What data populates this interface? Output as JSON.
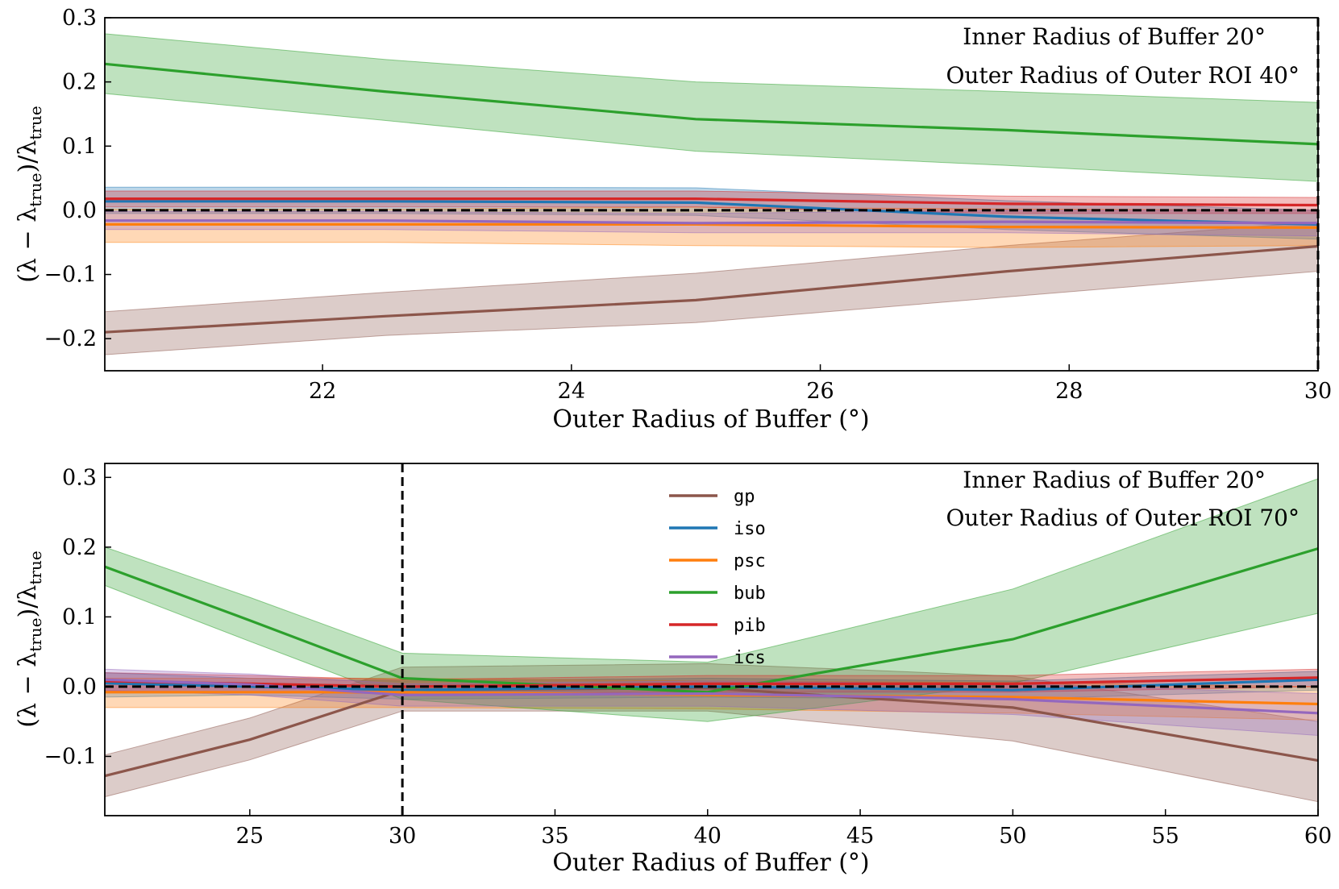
{
  "chart_data": [
    {
      "type": "line",
      "title": "",
      "xlabel": "Outer Radius of Buffer (°)",
      "ylabel": "(λ − λtrue)/λtrue",
      "ylabel_parts": {
        "a": "(λ − λ",
        "b": "true",
        "c": ")/λ",
        "d": "true"
      },
      "xlim": [
        20.25,
        30
      ],
      "ylim": [
        -0.25,
        0.3
      ],
      "xticks": [
        22,
        24,
        26,
        28,
        30
      ],
      "xtick_labels": [
        "22",
        "24",
        "26",
        "28",
        "30"
      ],
      "yticks": [
        -0.2,
        -0.1,
        0.0,
        0.1,
        0.2,
        0.3
      ],
      "ytick_labels": [
        "−0.2",
        "−0.1",
        "0.0",
        "0.1",
        "0.2",
        "0.3"
      ],
      "x": [
        20.25,
        22.5,
        25,
        27.5,
        30
      ],
      "series": [
        {
          "name": "gp",
          "color": "#8c564b",
          "values": [
            -0.19,
            -0.165,
            -0.14,
            -0.095,
            -0.056
          ],
          "lower": [
            -0.225,
            -0.195,
            -0.175,
            -0.135,
            -0.095
          ],
          "upper": [
            -0.158,
            -0.128,
            -0.098,
            -0.055,
            -0.018
          ]
        },
        {
          "name": "iso",
          "color": "#1f77b4",
          "values": [
            0.014,
            0.014,
            0.012,
            -0.01,
            -0.022
          ],
          "lower": [
            -0.005,
            -0.005,
            -0.008,
            -0.03,
            -0.045
          ],
          "upper": [
            0.036,
            0.036,
            0.035,
            0.015,
            0.0
          ]
        },
        {
          "name": "psc",
          "color": "#ff7f0e",
          "values": [
            -0.022,
            -0.022,
            -0.022,
            -0.026,
            -0.027
          ],
          "lower": [
            -0.05,
            -0.05,
            -0.055,
            -0.058,
            -0.055
          ],
          "upper": [
            0.002,
            0.002,
            0.005,
            0.002,
            0.0
          ]
        },
        {
          "name": "bub",
          "color": "#2ca02c",
          "values": [
            0.228,
            0.185,
            0.142,
            0.125,
            0.103
          ],
          "lower": [
            0.182,
            0.14,
            0.092,
            0.07,
            0.045
          ],
          "upper": [
            0.275,
            0.235,
            0.2,
            0.185,
            0.168
          ]
        },
        {
          "name": "pib",
          "color": "#d62728",
          "values": [
            0.018,
            0.018,
            0.018,
            0.01,
            0.008
          ],
          "lower": [
            0.005,
            0.005,
            0.005,
            -0.005,
            -0.005
          ],
          "upper": [
            0.03,
            0.03,
            0.03,
            0.022,
            0.02
          ]
        },
        {
          "name": "ics",
          "color": "#9467bd",
          "values": [
            -0.016,
            -0.016,
            -0.02,
            -0.018,
            -0.02
          ],
          "lower": [
            -0.03,
            -0.03,
            -0.035,
            -0.035,
            -0.04
          ],
          "upper": [
            -0.002,
            -0.002,
            -0.005,
            0.0,
            0.0
          ]
        }
      ],
      "reference_hline": 0.0,
      "reference_vline": 30,
      "annotations": [
        "Inner Radius of Buffer 20°",
        "Outer Radius of Outer ROI 40°"
      ],
      "legend": false,
      "grid": false
    },
    {
      "type": "line",
      "title": "",
      "xlabel": "Outer Radius of Buffer (°)",
      "ylabel": "(λ − λtrue)/λtrue",
      "ylabel_parts": {
        "a": "(λ − λ",
        "b": "true",
        "c": ")/λ",
        "d": "true"
      },
      "xlim": [
        20.25,
        60
      ],
      "ylim": [
        -0.185,
        0.32
      ],
      "xticks": [
        25,
        30,
        35,
        40,
        45,
        50,
        55,
        60
      ],
      "xtick_labels": [
        "25",
        "30",
        "35",
        "40",
        "45",
        "50",
        "55",
        "60"
      ],
      "yticks": [
        -0.1,
        0.0,
        0.1,
        0.2,
        0.3
      ],
      "ytick_labels": [
        "−0.1",
        "0.0",
        "0.1",
        "0.2",
        "0.3"
      ],
      "x": [
        20.25,
        25,
        30,
        40,
        50,
        60
      ],
      "series": [
        {
          "name": "gp",
          "color": "#8c564b",
          "values": [
            -0.128,
            -0.076,
            -0.005,
            -0.002,
            -0.03,
            -0.106
          ],
          "lower": [
            -0.158,
            -0.105,
            -0.035,
            -0.035,
            -0.078,
            -0.165
          ],
          "upper": [
            -0.098,
            -0.045,
            0.028,
            0.033,
            0.015,
            -0.05
          ]
        },
        {
          "name": "iso",
          "color": "#1f77b4",
          "values": [
            0.005,
            0.0,
            -0.005,
            0.0,
            -0.005,
            0.01
          ],
          "lower": [
            -0.015,
            -0.012,
            -0.018,
            -0.015,
            -0.018,
            -0.005
          ],
          "upper": [
            0.02,
            0.012,
            0.008,
            0.012,
            0.008,
            0.022
          ]
        },
        {
          "name": "psc",
          "color": "#ff7f0e",
          "values": [
            -0.008,
            -0.008,
            -0.008,
            -0.012,
            -0.015,
            -0.025
          ],
          "lower": [
            -0.03,
            -0.03,
            -0.03,
            -0.032,
            -0.038,
            -0.048
          ],
          "upper": [
            0.012,
            0.012,
            0.012,
            0.008,
            0.006,
            0.0
          ]
        },
        {
          "name": "bub",
          "color": "#2ca02c",
          "values": [
            0.172,
            0.095,
            0.012,
            -0.008,
            0.068,
            0.198
          ],
          "lower": [
            0.145,
            0.065,
            -0.018,
            -0.05,
            0.005,
            0.105
          ],
          "upper": [
            0.2,
            0.128,
            0.048,
            0.035,
            0.14,
            0.298
          ]
        },
        {
          "name": "pib",
          "color": "#d62728",
          "values": [
            0.008,
            0.004,
            0.0,
            0.004,
            0.004,
            0.013
          ],
          "lower": [
            -0.006,
            -0.008,
            -0.01,
            -0.008,
            -0.008,
            0.0
          ],
          "upper": [
            0.02,
            0.016,
            0.01,
            0.016,
            0.016,
            0.025
          ]
        },
        {
          "name": "ics",
          "color": "#9467bd",
          "values": [
            0.01,
            0.003,
            -0.012,
            -0.01,
            -0.018,
            -0.038
          ],
          "lower": [
            -0.005,
            -0.012,
            -0.028,
            -0.028,
            -0.04,
            -0.07
          ],
          "upper": [
            0.025,
            0.018,
            0.004,
            0.008,
            0.004,
            -0.01
          ]
        }
      ],
      "reference_hline": 0.0,
      "reference_vline": 30,
      "annotations": [
        "Inner Radius of Buffer 20°",
        "Outer Radius of Outer ROI 70°"
      ],
      "legend": true,
      "legend_position": "upper-center",
      "legend_entries": [
        "gp",
        "iso",
        "psc",
        "bub",
        "pib",
        "ics"
      ],
      "grid": false
    }
  ]
}
